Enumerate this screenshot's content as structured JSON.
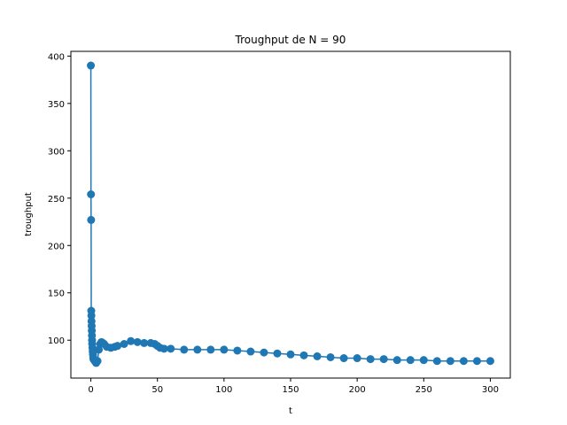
{
  "chart_data": {
    "type": "line",
    "title": "Troughput de N = 90",
    "xlabel": "t",
    "ylabel": "troughput",
    "xlim": [
      -15,
      315
    ],
    "ylim": [
      60,
      405
    ],
    "xticks": [
      0,
      50,
      100,
      150,
      200,
      250,
      300
    ],
    "yticks": [
      100,
      150,
      200,
      250,
      300,
      350,
      400
    ],
    "grid": false,
    "legend": "none",
    "marker": "circle",
    "color": "#1f77b4",
    "series": [
      {
        "x": [
          0,
          0.1,
          0.2,
          0.3,
          0.4,
          0.5,
          0.6,
          0.7,
          0.8,
          0.9,
          1,
          1.2,
          1.4,
          1.6,
          1.8,
          2,
          2.5,
          3,
          3.5,
          4,
          5,
          6,
          7,
          8,
          9,
          10,
          12,
          15,
          18,
          20,
          25,
          30,
          35,
          40,
          45,
          48,
          50,
          52,
          55,
          60,
          70,
          80,
          90,
          100,
          110,
          120,
          130,
          140,
          150,
          160,
          170,
          180,
          190,
          200,
          210,
          220,
          230,
          240,
          250,
          260,
          270,
          280,
          290,
          300
        ],
        "y": [
          390,
          254,
          227,
          131,
          126,
          120,
          115,
          110,
          105,
          100,
          96,
          92,
          88,
          85,
          82,
          80,
          79,
          78,
          77,
          76,
          78,
          90,
          96,
          98,
          97,
          96,
          93,
          92,
          93,
          94,
          96,
          99,
          98,
          97,
          97,
          96,
          94,
          92,
          91,
          91,
          90,
          90,
          90,
          90,
          89,
          88,
          87,
          86,
          85,
          84,
          83,
          82,
          81,
          81,
          80,
          80,
          79,
          79,
          79,
          78,
          78,
          78,
          78,
          78
        ]
      }
    ]
  }
}
